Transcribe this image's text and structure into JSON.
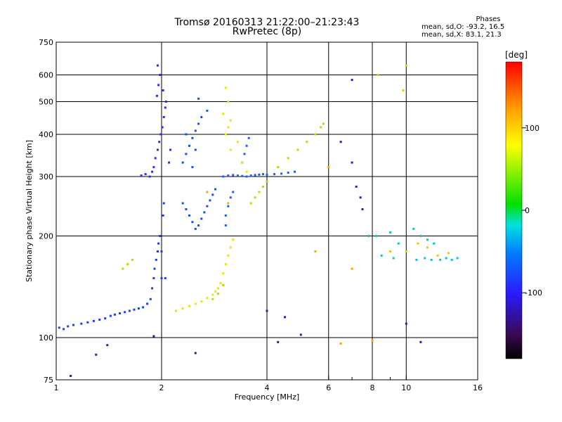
{
  "chart_data": {
    "type": "scatter",
    "title": "Tromsø 20160313 21:22:00–21:23:43",
    "subtitle": "RwPretec (8p)",
    "xlabel": "Frequency [MHz]",
    "ylabel": "Stationary phase Virtual Height [km]",
    "x_scale": "log",
    "y_scale": "log",
    "xlim": [
      1,
      16
    ],
    "ylim": [
      75,
      750
    ],
    "x_ticks": [
      1,
      2,
      4,
      6,
      8,
      10,
      16
    ],
    "x_tick_labels": [
      "1",
      "2",
      "4",
      "6",
      "8",
      "10",
      "16"
    ],
    "x_minor_ticks": [
      7,
      9
    ],
    "x_gridlines": [
      2,
      4,
      6,
      8,
      10
    ],
    "y_ticks": [
      75,
      100,
      200,
      300,
      400,
      500,
      600,
      750
    ],
    "y_tick_labels": [
      "75",
      "100",
      "200",
      "300",
      "400",
      "500",
      "600",
      "750"
    ],
    "y_gridlines": [
      100,
      200,
      300,
      400,
      500,
      600
    ],
    "grid": true,
    "colorbar": {
      "label": "[deg]",
      "range": [
        -180,
        180
      ],
      "ticks": [
        100,
        0,
        -100
      ],
      "tick_labels": [
        "100",
        "0",
        "-100"
      ]
    },
    "stats": {
      "heading": "Phases",
      "line_o": "mean, sd,O:  -93.2, 16.5",
      "line_x": "mean, sd,X:  83.1, 21.3"
    },
    "series": [
      {
        "phase": -110,
        "color": "#1a3cff",
        "points": [
          [
            1.02,
            107
          ],
          [
            1.05,
            106
          ],
          [
            1.08,
            108
          ],
          [
            1.12,
            109
          ],
          [
            1.18,
            110
          ],
          [
            1.23,
            111
          ],
          [
            1.28,
            112
          ],
          [
            1.33,
            113
          ],
          [
            1.38,
            114
          ],
          [
            1.43,
            116
          ],
          [
            1.47,
            117
          ],
          [
            1.52,
            118
          ],
          [
            1.57,
            119
          ],
          [
            1.62,
            120
          ],
          [
            1.67,
            121
          ],
          [
            1.72,
            122
          ],
          [
            1.77,
            123
          ],
          [
            1.82,
            126
          ],
          [
            1.86,
            130
          ],
          [
            1.88,
            140
          ],
          [
            1.9,
            150
          ],
          [
            1.91,
            160
          ],
          [
            1.93,
            170
          ],
          [
            1.95,
            180
          ],
          [
            1.96,
            190
          ],
          [
            1.98,
            200
          ],
          [
            2.0,
            150
          ],
          [
            2.0,
            180
          ],
          [
            2.02,
            230
          ],
          [
            2.03,
            250
          ],
          [
            2.05,
            150
          ]
        ]
      },
      {
        "phase": -115,
        "color": "#2a2cf0",
        "points": [
          [
            1.85,
            300
          ],
          [
            1.88,
            310
          ],
          [
            1.9,
            320
          ],
          [
            1.92,
            340
          ],
          [
            1.95,
            360
          ],
          [
            1.97,
            380
          ],
          [
            1.99,
            400
          ],
          [
            2.01,
            420
          ],
          [
            2.03,
            450
          ],
          [
            2.05,
            480
          ],
          [
            1.94,
            520
          ],
          [
            1.96,
            560
          ],
          [
            1.98,
            600
          ],
          [
            1.95,
            640
          ],
          [
            2.02,
            540
          ],
          [
            2.06,
            500
          ],
          [
            2.1,
            330
          ],
          [
            2.12,
            360
          ],
          [
            1.8,
            305
          ],
          [
            1.75,
            302
          ]
        ]
      },
      {
        "phase": -105,
        "color": "#1050f0",
        "points": [
          [
            2.3,
            330
          ],
          [
            2.35,
            350
          ],
          [
            2.4,
            370
          ],
          [
            2.45,
            390
          ],
          [
            2.5,
            410
          ],
          [
            2.55,
            430
          ],
          [
            2.6,
            450
          ],
          [
            2.5,
            360
          ],
          [
            2.45,
            320
          ],
          [
            2.7,
            470
          ],
          [
            2.35,
            400
          ],
          [
            2.55,
            510
          ],
          [
            2.3,
            250
          ],
          [
            2.35,
            240
          ],
          [
            2.4,
            230
          ],
          [
            2.45,
            220
          ],
          [
            2.5,
            210
          ],
          [
            2.55,
            215
          ],
          [
            2.6,
            225
          ],
          [
            2.65,
            235
          ],
          [
            2.7,
            245
          ],
          [
            2.75,
            255
          ],
          [
            2.8,
            265
          ],
          [
            2.85,
            275
          ]
        ]
      },
      {
        "phase": -100,
        "color": "#1e5aff",
        "points": [
          [
            3.0,
            300
          ],
          [
            3.1,
            302
          ],
          [
            3.2,
            303
          ],
          [
            3.3,
            302
          ],
          [
            3.4,
            301
          ],
          [
            3.5,
            300
          ],
          [
            3.6,
            302
          ],
          [
            3.7,
            303
          ],
          [
            3.8,
            304
          ],
          [
            3.9,
            305
          ],
          [
            4.0,
            304
          ],
          [
            4.2,
            305
          ],
          [
            4.4,
            306
          ],
          [
            4.6,
            308
          ],
          [
            4.8,
            310
          ],
          [
            3.05,
            230
          ],
          [
            3.1,
            245
          ],
          [
            3.15,
            260
          ],
          [
            3.2,
            270
          ],
          [
            3.05,
            215
          ],
          [
            3.4,
            330
          ],
          [
            3.45,
            350
          ],
          [
            3.5,
            370
          ],
          [
            3.55,
            390
          ]
        ]
      },
      {
        "phase": 80,
        "color": "#e8e800",
        "points": [
          [
            2.2,
            120
          ],
          [
            2.3,
            122
          ],
          [
            2.4,
            124
          ],
          [
            2.5,
            126
          ],
          [
            2.6,
            128
          ],
          [
            2.7,
            131
          ],
          [
            2.8,
            134
          ],
          [
            2.85,
            137
          ],
          [
            2.9,
            140
          ],
          [
            2.95,
            145
          ],
          [
            3.0,
            155
          ],
          [
            3.05,
            165
          ],
          [
            3.1,
            175
          ],
          [
            3.15,
            185
          ],
          [
            3.2,
            195
          ],
          [
            3.05,
            400
          ],
          [
            3.1,
            420
          ],
          [
            3.15,
            440
          ],
          [
            3.0,
            460
          ],
          [
            3.1,
            500
          ],
          [
            3.05,
            550
          ],
          [
            3.15,
            360
          ],
          [
            3.3,
            380
          ],
          [
            3.4,
            330
          ],
          [
            3.5,
            310
          ]
        ]
      },
      {
        "phase": 70,
        "color": "#a0e800",
        "points": [
          [
            2.8,
            130
          ],
          [
            2.9,
            135
          ],
          [
            3.0,
            143
          ],
          [
            3.6,
            250
          ],
          [
            3.7,
            260
          ],
          [
            3.8,
            270
          ],
          [
            3.9,
            280
          ],
          [
            4.0,
            290
          ],
          [
            4.3,
            320
          ],
          [
            4.6,
            340
          ],
          [
            4.9,
            360
          ],
          [
            5.2,
            380
          ],
          [
            5.5,
            400
          ],
          [
            5.7,
            420
          ],
          [
            5.8,
            430
          ],
          [
            1.55,
            160
          ],
          [
            1.6,
            165
          ],
          [
            1.65,
            170
          ]
        ]
      },
      {
        "phase": 120,
        "color": "#ffa500",
        "points": [
          [
            5.5,
            180
          ],
          [
            6.0,
            320
          ],
          [
            6.5,
            96
          ],
          [
            7.0,
            160
          ],
          [
            8.0,
            98
          ],
          [
            3.1,
            250
          ],
          [
            2.7,
            270
          ]
        ]
      },
      {
        "phase": -60,
        "color": "#00c8d8",
        "points": [
          [
            7.8,
            200
          ],
          [
            8.2,
            200
          ],
          [
            9.0,
            205
          ],
          [
            9.5,
            190
          ],
          [
            10.5,
            210
          ],
          [
            11.0,
            200
          ],
          [
            11.5,
            195
          ],
          [
            12.0,
            190
          ],
          [
            10.7,
            170
          ],
          [
            11.3,
            172
          ],
          [
            11.8,
            170
          ],
          [
            12.5,
            170
          ],
          [
            13.0,
            172
          ],
          [
            13.5,
            170
          ],
          [
            14.0,
            172
          ],
          [
            8.5,
            175
          ],
          [
            9.2,
            172
          ]
        ]
      },
      {
        "phase": 100,
        "color": "#f0c800",
        "points": [
          [
            9.0,
            180
          ],
          [
            10.0,
            180
          ],
          [
            10.8,
            190
          ],
          [
            11.5,
            185
          ],
          [
            12.3,
            175
          ],
          [
            13.2,
            178
          ],
          [
            8.3,
            600
          ],
          [
            10.0,
            640
          ],
          [
            9.8,
            540
          ]
        ]
      },
      {
        "phase": -135,
        "color": "#2020c0",
        "points": [
          [
            4.0,
            120
          ],
          [
            4.5,
            115
          ],
          [
            5.0,
            102
          ],
          [
            6.5,
            380
          ],
          [
            7.0,
            580
          ],
          [
            7.2,
            280
          ],
          [
            7.4,
            260
          ],
          [
            7.5,
            240
          ],
          [
            7.0,
            330
          ],
          [
            10.0,
            110
          ],
          [
            11.0,
            97
          ],
          [
            4.3,
            97
          ],
          [
            2.5,
            90
          ],
          [
            1.9,
            101
          ],
          [
            1.3,
            89
          ],
          [
            1.1,
            77
          ],
          [
            1.4,
            95
          ]
        ]
      }
    ]
  }
}
